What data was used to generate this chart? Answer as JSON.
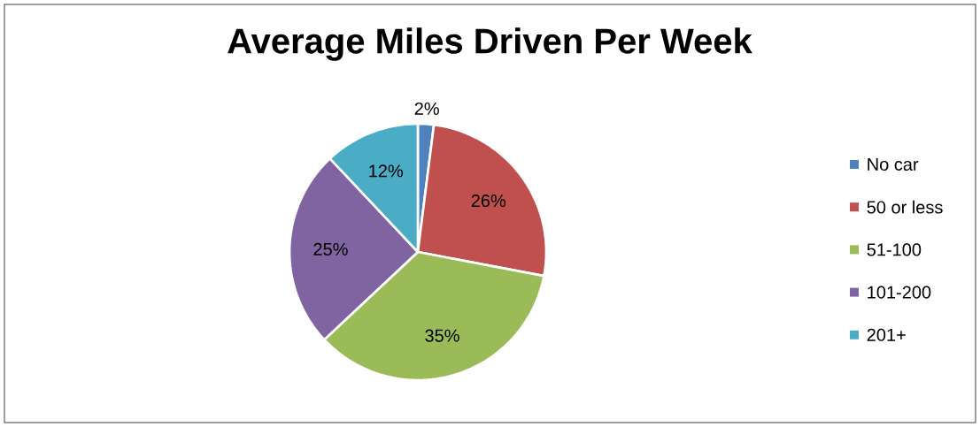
{
  "chart_data": {
    "type": "pie",
    "title": "Average Miles Driven Per Week",
    "categories": [
      "No car",
      "50 or less",
      "51-100",
      "101-200",
      "201+"
    ],
    "values": [
      2,
      26,
      35,
      25,
      12
    ],
    "value_labels": [
      "2%",
      "26%",
      "35%",
      "25%",
      "12%"
    ],
    "colors": [
      "#4f81bd",
      "#c0504d",
      "#9bbb59",
      "#8064a2",
      "#4bacc6"
    ],
    "legend": "right"
  }
}
